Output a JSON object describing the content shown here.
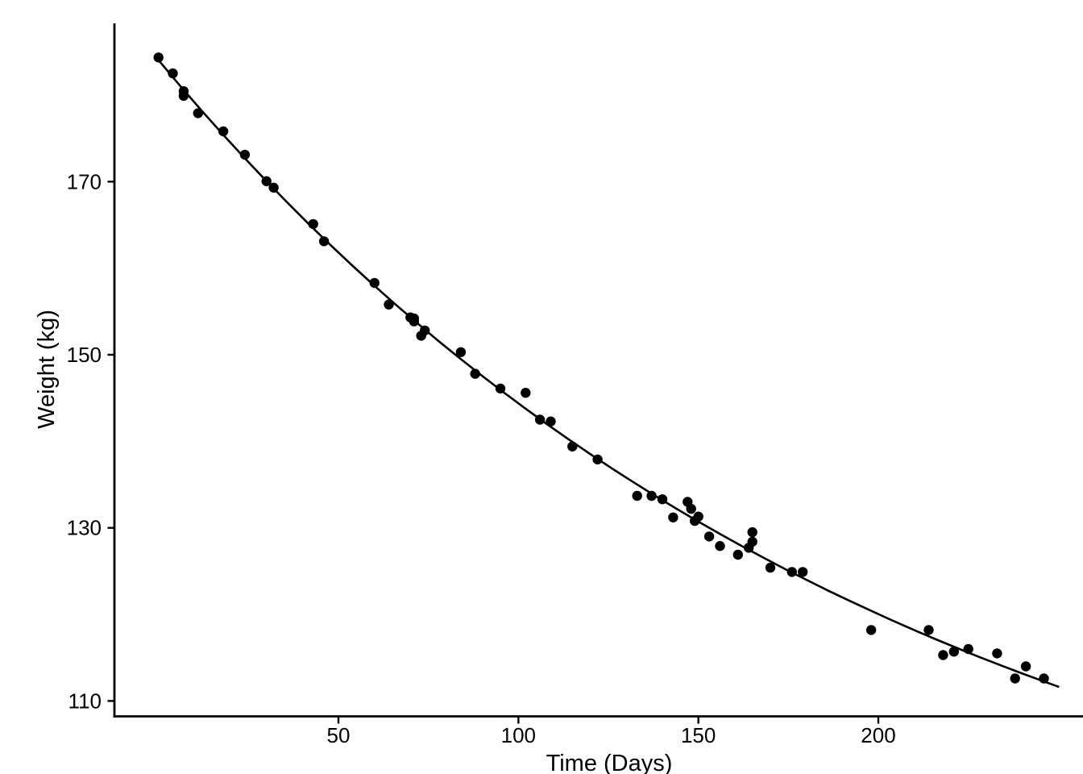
{
  "chart_data": {
    "type": "scatter",
    "title": "",
    "xlabel": "Time (Days)",
    "ylabel": "Weight (kg)",
    "x_ticks": [
      50,
      100,
      150,
      200
    ],
    "y_ticks": [
      110,
      130,
      150,
      170
    ],
    "xlim": [
      -12,
      263
    ],
    "ylim": [
      108,
      188
    ],
    "grid": false,
    "legend": "none",
    "background_color": "#ffffff",
    "point_color": "#000000",
    "line_color": "#000000",
    "axis_color": "#000000",
    "series": [
      {
        "name": "observed-weight",
        "x": [
          0,
          4,
          7,
          7,
          11,
          18,
          24,
          30,
          32,
          43,
          46,
          60,
          64,
          70,
          71,
          71,
          73,
          74,
          84,
          88,
          95,
          102,
          106,
          109,
          115,
          122,
          133,
          137,
          140,
          143,
          147,
          148,
          149,
          150,
          153,
          156,
          161,
          164,
          165,
          165,
          170,
          176,
          179,
          198,
          214,
          218,
          221,
          225,
          233,
          238,
          241,
          246
        ],
        "y": [
          184.35,
          182.51,
          180.45,
          179.91,
          177.91,
          175.81,
          173.11,
          170.06,
          169.31,
          165.1,
          163.11,
          158.3,
          155.8,
          154.31,
          153.86,
          154.2,
          152.2,
          152.8,
          150.3,
          147.8,
          146.1,
          145.6,
          142.5,
          142.3,
          139.4,
          137.9,
          133.7,
          133.7,
          133.3,
          131.2,
          133.0,
          132.2,
          130.8,
          131.3,
          129.0,
          127.9,
          126.9,
          127.7,
          129.5,
          128.4,
          125.4,
          124.9,
          124.9,
          118.2,
          118.2,
          115.3,
          115.7,
          116.0,
          115.5,
          112.6,
          114.0,
          112.6
        ]
      }
    ],
    "smooth_curve": {
      "name": "fitted-trend",
      "x": [
        0,
        6,
        12,
        18,
        24,
        30,
        36,
        42,
        48,
        54,
        60,
        66,
        72,
        78,
        84,
        90,
        96,
        102,
        108,
        114,
        120,
        126,
        132,
        138,
        144,
        150,
        156,
        162,
        168,
        174,
        180,
        186,
        192,
        198,
        204,
        210,
        216,
        222,
        228,
        234,
        240,
        246,
        250
      ],
      "y": [
        184.05,
        181.08,
        178.2,
        175.41,
        172.69,
        170.06,
        167.5,
        165.01,
        162.59,
        160.25,
        157.97,
        155.76,
        153.61,
        151.52,
        149.5,
        147.53,
        145.62,
        143.77,
        141.96,
        140.21,
        138.51,
        136.86,
        135.26,
        133.7,
        132.19,
        130.72,
        129.3,
        127.91,
        126.57,
        125.26,
        124.0,
        122.76,
        121.57,
        120.41,
        119.28,
        118.18,
        117.12,
        116.09,
        115.09,
        114.12,
        113.17,
        112.25,
        111.65
      ]
    }
  }
}
